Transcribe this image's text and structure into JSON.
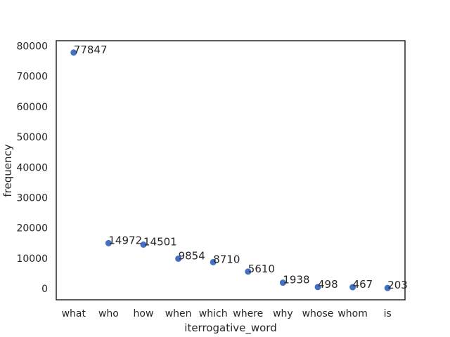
{
  "chart_data": {
    "type": "scatter",
    "xlabel": "iterrogative_word",
    "ylabel": "frequency",
    "categories": [
      "what",
      "who",
      "how",
      "when",
      "which",
      "where",
      "why",
      "whose",
      "whom",
      "is"
    ],
    "values": [
      77847,
      14972,
      14501,
      9854,
      8710,
      5610,
      1938,
      498,
      467,
      203
    ],
    "data_labels": [
      "77847",
      "14972",
      "14501",
      "9854",
      "8710",
      "5610",
      "1938",
      "498",
      "467",
      "203"
    ],
    "y_ticks": [
      0,
      10000,
      20000,
      30000,
      40000,
      50000,
      60000,
      70000,
      80000
    ],
    "y_tick_labels": [
      "0",
      "10000",
      "20000",
      "30000",
      "40000",
      "50000",
      "60000",
      "70000",
      "80000"
    ],
    "ylim": [
      -3700,
      81750
    ],
    "grid": false,
    "marker_color": "#4470c4"
  }
}
